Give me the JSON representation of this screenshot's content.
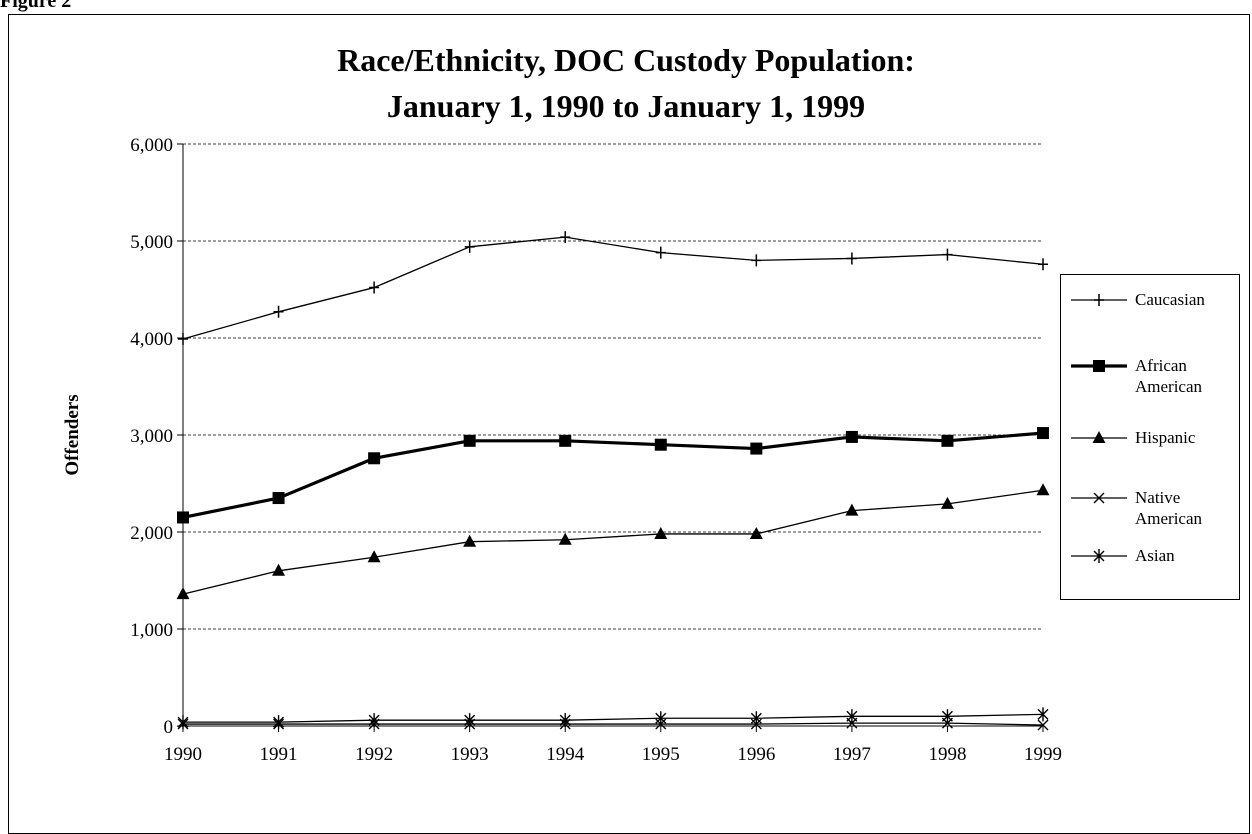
{
  "figure_label": "Figure 2",
  "chart_data": {
    "type": "line",
    "title_line1": "Race/Ethnicity, DOC Custody Population:",
    "title_line2": "January 1, 1990 to January 1, 1999",
    "xlabel": "",
    "ylabel": "Offenders",
    "x": [
      "1990",
      "1991",
      "1992",
      "1993",
      "1994",
      "1995",
      "1996",
      "1997",
      "1998",
      "1999"
    ],
    "ylim": [
      0,
      6000
    ],
    "yticks": [
      "0",
      "1,000",
      "2,000",
      "3,000",
      "4,000",
      "5,000",
      "6,000"
    ],
    "grid": true,
    "legend_position": "right",
    "series": [
      {
        "name": "Caucasian",
        "marker": "plus",
        "line_width": 1.3,
        "values": [
          3990,
          4270,
          4520,
          4940,
          5040,
          4880,
          4800,
          4820,
          4860,
          4760
        ]
      },
      {
        "name": "African American",
        "marker": "square",
        "line_width": 3.2,
        "values": [
          2150,
          2350,
          2760,
          2940,
          2940,
          2900,
          2860,
          2980,
          2940,
          3020
        ]
      },
      {
        "name": "Hispanic",
        "marker": "triangle",
        "line_width": 1.3,
        "values": [
          1360,
          1600,
          1740,
          1900,
          1920,
          1980,
          1980,
          2220,
          2290,
          2430
        ]
      },
      {
        "name": "Native American",
        "marker": "x",
        "line_width": 1.3,
        "values": [
          20,
          20,
          20,
          20,
          20,
          20,
          20,
          30,
          30,
          10
        ]
      },
      {
        "name": "Asian",
        "marker": "asterisk",
        "line_width": 1.3,
        "values": [
          40,
          40,
          60,
          60,
          60,
          80,
          80,
          100,
          100,
          120
        ]
      }
    ]
  }
}
